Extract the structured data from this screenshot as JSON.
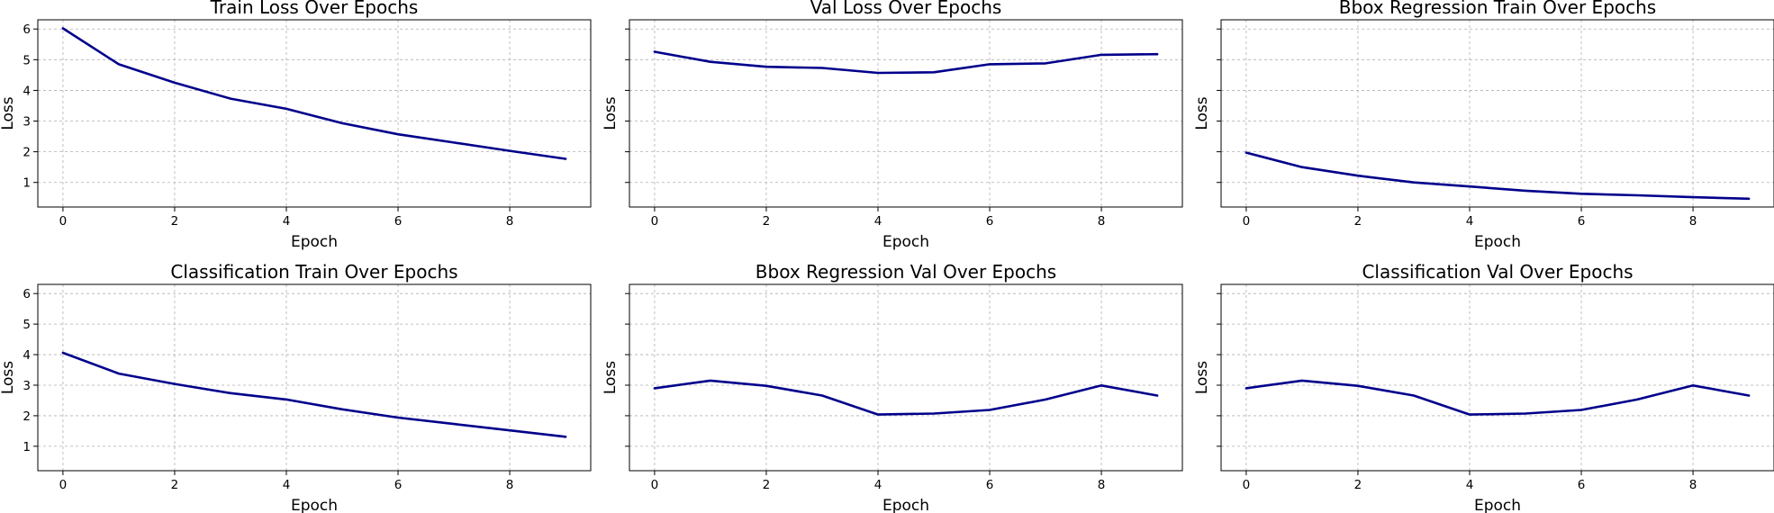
{
  "colors": {
    "line": "#00008b",
    "grid": "#b0b0b0",
    "frame": "#000000"
  },
  "chart_data": [
    {
      "type": "line",
      "title": "Train Loss Over Epochs",
      "xlabel": "Epoch",
      "ylabel": "Loss",
      "x": [
        0,
        1,
        2,
        3,
        4,
        5,
        6,
        7,
        8,
        9
      ],
      "series": [
        {
          "values": [
            6.02,
            4.85,
            4.25,
            3.73,
            3.4,
            2.93,
            2.57,
            2.3,
            2.03,
            1.77
          ]
        }
      ],
      "xlim": [
        -0.45,
        9.45
      ],
      "ylim": [
        0.2,
        6.3
      ],
      "xticks": [
        0,
        2,
        4,
        6,
        8
      ],
      "yticks": [
        1,
        2,
        3,
        4,
        5,
        6
      ],
      "ytick_labels_visible": true,
      "grid": true
    },
    {
      "type": "line",
      "title": "Val Loss Over Epochs",
      "xlabel": "Epoch",
      "ylabel": "Loss",
      "x": [
        0,
        1,
        2,
        3,
        4,
        5,
        6,
        7,
        8,
        9
      ],
      "series": [
        {
          "values": [
            5.26,
            4.93,
            4.77,
            4.73,
            4.57,
            4.59,
            4.85,
            4.88,
            5.16,
            5.18
          ]
        }
      ],
      "xlim": [
        -0.45,
        9.45
      ],
      "ylim": [
        0.2,
        6.3
      ],
      "xticks": [
        0,
        2,
        4,
        6,
        8
      ],
      "yticks": [
        1,
        2,
        3,
        4,
        5,
        6
      ],
      "ytick_labels_visible": false,
      "grid": true
    },
    {
      "type": "line",
      "title": "Bbox Regression Train Over Epochs",
      "xlabel": "Epoch",
      "ylabel": "Loss",
      "x": [
        0,
        1,
        2,
        3,
        4,
        5,
        6,
        7,
        8,
        9
      ],
      "series": [
        {
          "values": [
            1.97,
            1.5,
            1.22,
            1.0,
            0.87,
            0.73,
            0.63,
            0.58,
            0.52,
            0.47
          ]
        }
      ],
      "xlim": [
        -0.45,
        9.45
      ],
      "ylim": [
        0.2,
        6.3
      ],
      "xticks": [
        0,
        2,
        4,
        6,
        8
      ],
      "yticks": [
        1,
        2,
        3,
        4,
        5,
        6
      ],
      "ytick_labels_visible": false,
      "grid": true
    },
    {
      "type": "line",
      "title": "Classification Train Over Epochs",
      "xlabel": "Epoch",
      "ylabel": "Loss",
      "x": [
        0,
        1,
        2,
        3,
        4,
        5,
        6,
        7,
        8,
        9
      ],
      "series": [
        {
          "values": [
            4.06,
            3.38,
            3.04,
            2.74,
            2.53,
            2.21,
            1.94,
            1.73,
            1.52,
            1.31
          ]
        }
      ],
      "xlim": [
        -0.45,
        9.45
      ],
      "ylim": [
        0.2,
        6.3
      ],
      "xticks": [
        0,
        2,
        4,
        6,
        8
      ],
      "yticks": [
        1,
        2,
        3,
        4,
        5,
        6
      ],
      "ytick_labels_visible": true,
      "grid": true
    },
    {
      "type": "line",
      "title": "Bbox Regression Val Over Epochs",
      "xlabel": "Epoch",
      "ylabel": "Loss",
      "x": [
        0,
        1,
        2,
        3,
        4,
        5,
        6,
        7,
        8,
        9
      ],
      "series": [
        {
          "values": [
            2.9,
            3.15,
            2.98,
            2.66,
            2.04,
            2.07,
            2.19,
            2.53,
            2.99,
            2.66
          ]
        }
      ],
      "xlim": [
        -0.45,
        9.45
      ],
      "ylim": [
        0.2,
        6.3
      ],
      "xticks": [
        0,
        2,
        4,
        6,
        8
      ],
      "yticks": [
        1,
        2,
        3,
        4,
        5,
        6
      ],
      "ytick_labels_visible": false,
      "grid": true
    },
    {
      "type": "line",
      "title": "Classification Val Over Epochs",
      "xlabel": "Epoch",
      "ylabel": "Loss",
      "x": [
        0,
        1,
        2,
        3,
        4,
        5,
        6,
        7,
        8,
        9
      ],
      "series": [
        {
          "values": [
            2.9,
            3.15,
            2.98,
            2.66,
            2.04,
            2.07,
            2.19,
            2.53,
            2.99,
            2.66
          ]
        }
      ],
      "xlim": [
        -0.45,
        9.45
      ],
      "ylim": [
        0.2,
        6.3
      ],
      "xticks": [
        0,
        2,
        4,
        6,
        8
      ],
      "yticks": [
        1,
        2,
        3,
        4,
        5,
        6
      ],
      "ytick_labels_visible": false,
      "grid": true
    }
  ]
}
